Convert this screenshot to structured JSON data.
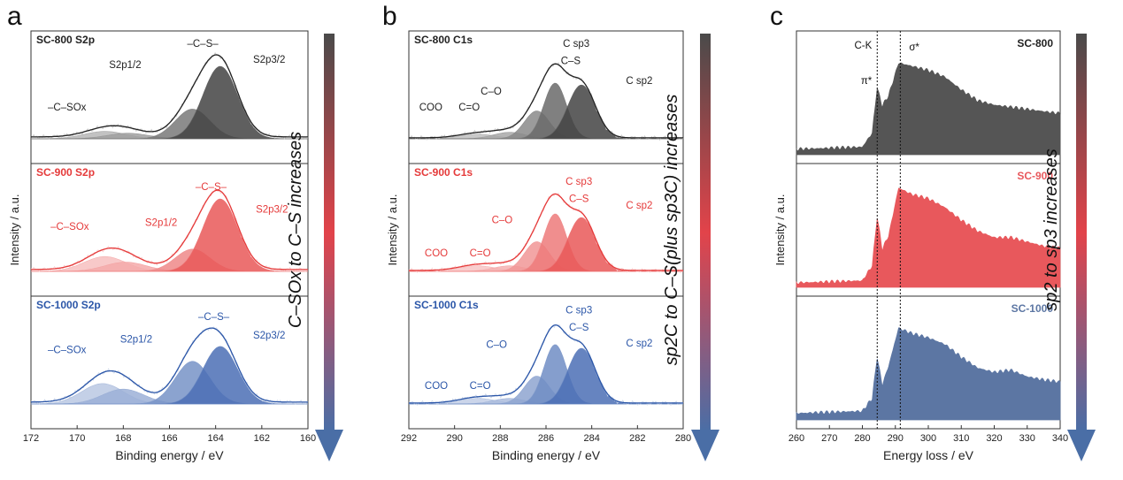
{
  "panels": [
    {
      "letter": "a",
      "xlabel": "Binding energy / eV",
      "ylabel": "Intensity / a.u.",
      "xlim": [
        172,
        160
      ],
      "xticks": [
        "172",
        "170",
        "168",
        "166",
        "164",
        "162",
        "160"
      ],
      "arrow_text": "C–SOx to C–S increases",
      "subplots": [
        {
          "title": "SC-800 S2p",
          "color": "#222222",
          "labels": [
            "–C–S–",
            "S2p1/2",
            "S2p3/2",
            "–C–SOx"
          ]
        },
        {
          "title": "SC-900 S2p",
          "color": "#e53a3a",
          "labels": [
            "–C–S–",
            "S2p1/2",
            "S2p3/2",
            "–C–SOx"
          ]
        },
        {
          "title": "SC-1000 S2p",
          "color": "#2b56a8",
          "labels": [
            "–C–S–",
            "S2p1/2",
            "S2p3/2",
            "–C–SOx"
          ]
        }
      ]
    },
    {
      "letter": "b",
      "xlabel": "Binding energy / eV",
      "ylabel": "Intensity / a.u.",
      "xlim": [
        292,
        280
      ],
      "xticks": [
        "292",
        "290",
        "288",
        "286",
        "284",
        "282",
        "280"
      ],
      "arrow_text": "sp2C to C–S(plus sp3C) increases",
      "subplots": [
        {
          "title": "SC-800 C1s",
          "color": "#222222",
          "labels": [
            "C sp3",
            "C–S",
            "C sp2",
            "C–O",
            "C=O",
            "COO"
          ]
        },
        {
          "title": "SC-900 C1s",
          "color": "#e53a3a",
          "labels": [
            "C sp3",
            "C–S",
            "C sp2",
            "C–O",
            "C=O",
            "COO"
          ]
        },
        {
          "title": "SC-1000 C1s",
          "color": "#2b56a8",
          "labels": [
            "C sp3",
            "C–S",
            "C sp2",
            "C–O",
            "C=O",
            "COO"
          ]
        }
      ]
    },
    {
      "letter": "c",
      "xlabel": "Energy loss / eV",
      "ylabel": "Intensity / a.u.",
      "xlim": [
        260,
        340
      ],
      "xticks": [
        "260",
        "270",
        "280",
        "290",
        "300",
        "310",
        "320",
        "330",
        "340"
      ],
      "arrow_text": "sp2 to sp3 increases",
      "edge_label": "C-K",
      "pi_label": "π*",
      "sigma_label": "σ*",
      "subplots": [
        {
          "title": "SC-800",
          "color": "#555555"
        },
        {
          "title": "SC-900",
          "color": "#e8585c"
        },
        {
          "title": "SC-1000",
          "color": "#5c76a3"
        }
      ]
    }
  ],
  "chart_data": [
    {
      "type": "line",
      "title": "",
      "xlabel": "Binding energy / eV",
      "ylabel": "Intensity / a.u.",
      "xlim": [
        172,
        160
      ],
      "series": [
        {
          "name": "SC-800 S2p",
          "peaks": [
            {
              "label": "–C–SOx",
              "x": 168.8
            },
            {
              "label": "S2p1/2",
              "x": 165.0
            },
            {
              "label": "S2p3/2",
              "x": 163.8
            }
          ],
          "envelope_max_x": 164.0
        },
        {
          "name": "SC-900 S2p",
          "peaks": [
            {
              "label": "–C–SOx",
              "x": 168.6
            },
            {
              "label": "S2p1/2",
              "x": 165.0
            },
            {
              "label": "S2p3/2",
              "x": 163.8
            }
          ],
          "envelope_max_x": 164.0
        },
        {
          "name": "SC-1000 S2p",
          "peaks": [
            {
              "label": "–C–SOx",
              "x": 168.6
            },
            {
              "label": "S2p1/2",
              "x": 165.0
            },
            {
              "label": "S2p3/2",
              "x": 163.8
            }
          ],
          "envelope_max_x": 164.2
        }
      ]
    },
    {
      "type": "line",
      "title": "",
      "xlabel": "Binding energy / eV",
      "ylabel": "Intensity / a.u.",
      "xlim": [
        292,
        280
      ],
      "series": [
        {
          "name": "SC-800 C1s",
          "peaks": [
            {
              "label": "COO",
              "x": 289.0
            },
            {
              "label": "C=O",
              "x": 287.5
            },
            {
              "label": "C–O",
              "x": 286.4
            },
            {
              "label": "C sp3 / C–S",
              "x": 285.6
            },
            {
              "label": "C sp2",
              "x": 284.5
            }
          ]
        },
        {
          "name": "SC-900 C1s",
          "peaks": [
            {
              "label": "COO",
              "x": 289.0
            },
            {
              "label": "C=O",
              "x": 287.5
            },
            {
              "label": "C–O",
              "x": 286.4
            },
            {
              "label": "C sp3 / C–S",
              "x": 285.6
            },
            {
              "label": "C sp2",
              "x": 284.5
            }
          ]
        },
        {
          "name": "SC-1000 C1s",
          "peaks": [
            {
              "label": "COO",
              "x": 289.0
            },
            {
              "label": "C=O",
              "x": 287.5
            },
            {
              "label": "C–O",
              "x": 286.4
            },
            {
              "label": "C sp3 / C–S",
              "x": 285.6
            },
            {
              "label": "C sp2",
              "x": 284.5
            }
          ]
        }
      ]
    },
    {
      "type": "area",
      "title": "",
      "xlabel": "Energy loss / eV",
      "ylabel": "Intensity / a.u.",
      "xlim": [
        260,
        340
      ],
      "markers": [
        {
          "label": "π*",
          "x": 284.5
        },
        {
          "label": "σ*",
          "x": 291.5
        }
      ],
      "series": [
        {
          "name": "SC-800",
          "x": [
            260,
            280,
            283,
            284.5,
            286,
            288,
            291,
            295,
            300,
            305,
            310,
            315,
            320,
            325,
            330,
            335,
            340
          ],
          "y": [
            0.05,
            0.07,
            0.2,
            0.62,
            0.45,
            0.55,
            0.85,
            0.82,
            0.78,
            0.72,
            0.6,
            0.5,
            0.46,
            0.44,
            0.42,
            0.4,
            0.38
          ]
        },
        {
          "name": "SC-900",
          "x": [
            260,
            280,
            283,
            284.5,
            286,
            288,
            291,
            295,
            300,
            305,
            310,
            315,
            320,
            325,
            330,
            335,
            340
          ],
          "y": [
            0.04,
            0.06,
            0.2,
            0.65,
            0.35,
            0.48,
            0.92,
            0.86,
            0.82,
            0.74,
            0.62,
            0.52,
            0.46,
            0.46,
            0.42,
            0.38,
            0.36
          ]
        },
        {
          "name": "SC-1000",
          "x": [
            260,
            280,
            283,
            284.5,
            286,
            288,
            291,
            295,
            300,
            305,
            310,
            315,
            320,
            325,
            330,
            335,
            340
          ],
          "y": [
            0.06,
            0.08,
            0.2,
            0.58,
            0.32,
            0.5,
            0.85,
            0.8,
            0.76,
            0.7,
            0.58,
            0.48,
            0.44,
            0.46,
            0.4,
            0.37,
            0.35
          ]
        }
      ]
    }
  ]
}
